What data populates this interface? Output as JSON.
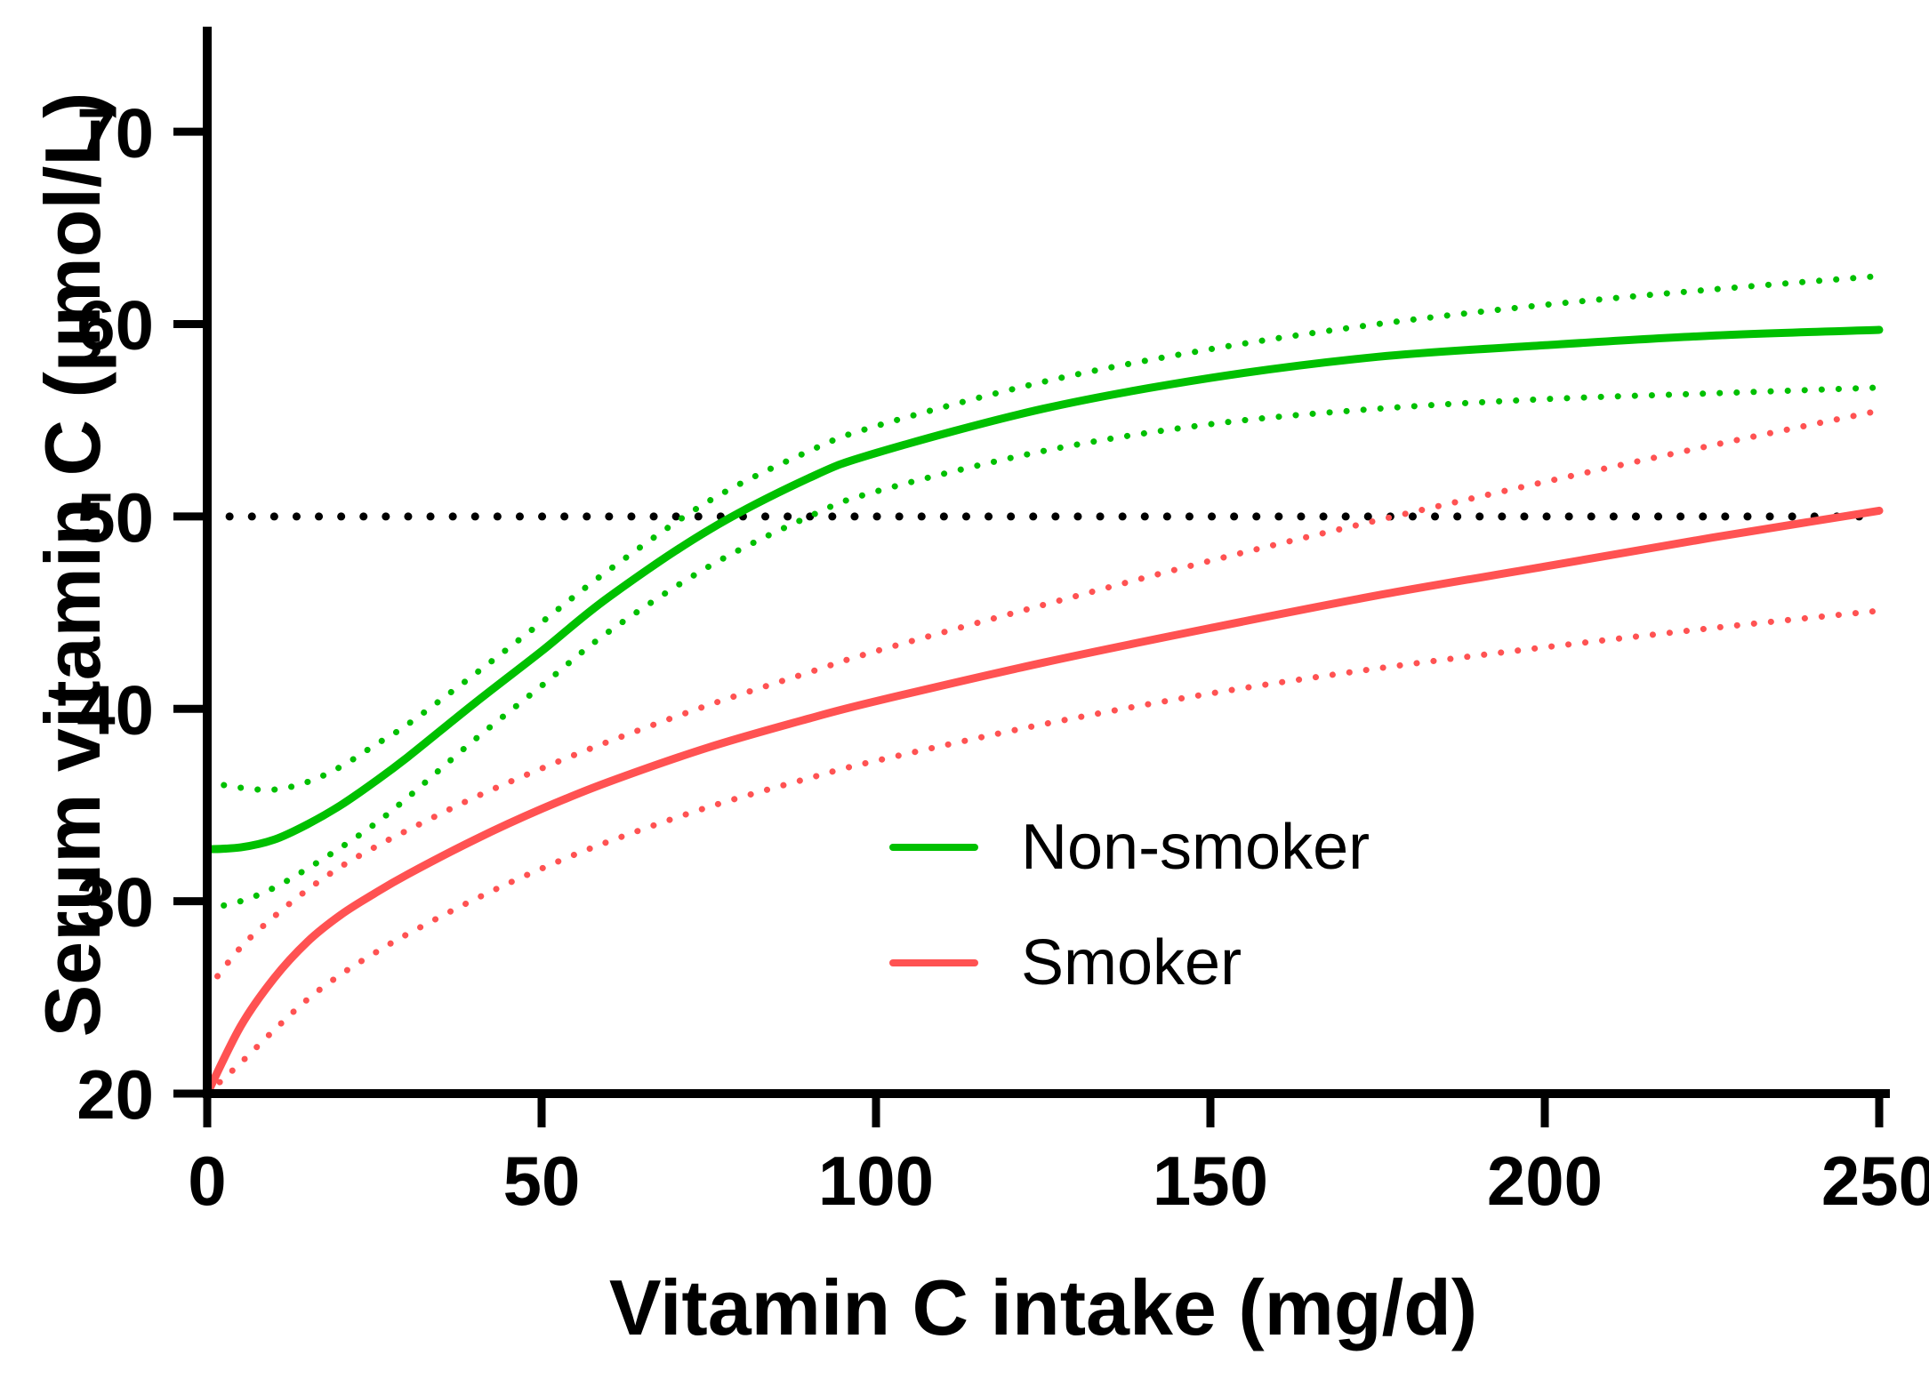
{
  "figure": {
    "xlabel": "Vitamin C intake (mg/d)",
    "ylabel": "Serum vitamin C (µmol/L)"
  },
  "legend": {
    "items": [
      {
        "label": "Non-smoker",
        "color": "#00c000"
      },
      {
        "label": "Smoker",
        "color": "#ff5252"
      }
    ]
  },
  "chart_data": {
    "type": "line",
    "title": "",
    "xlabel": "Vitamin C intake (mg/d)",
    "ylabel": "Serum vitamin C (µmol/L)",
    "xlim": [
      0,
      250
    ],
    "ylim": [
      20,
      75
    ],
    "xticks": [
      0,
      50,
      100,
      150,
      200,
      250
    ],
    "yticks": [
      20,
      30,
      40,
      50,
      60,
      70
    ],
    "grid": false,
    "legend_position": "inside lower right",
    "axis_color": "#000000",
    "reference_line": {
      "y": 50,
      "style": "dotted",
      "color": "#000000"
    },
    "x": [
      0,
      5,
      10,
      15,
      20,
      25,
      30,
      40,
      50,
      60,
      75,
      90,
      100,
      125,
      150,
      175,
      200,
      225,
      250
    ],
    "series": [
      {
        "name": "Non-smoker",
        "color": "#00c000",
        "style": "solid",
        "values": [
          32.7,
          32.8,
          33.2,
          34.0,
          35.0,
          36.2,
          37.5,
          40.3,
          43.0,
          45.8,
          49.3,
          52.0,
          53.3,
          55.6,
          57.2,
          58.3,
          58.9,
          59.4,
          59.7
        ]
      },
      {
        "name": "Non-smoker CI upper",
        "color": "#00c000",
        "style": "dotted",
        "values": [
          36.2,
          35.9,
          35.8,
          36.2,
          37.0,
          38.1,
          39.2,
          41.8,
          44.5,
          47.2,
          50.8,
          53.4,
          54.7,
          57.0,
          58.7,
          60.0,
          61.0,
          61.8,
          62.5
        ]
      },
      {
        "name": "Non-smoker CI lower",
        "color": "#00c000",
        "style": "dotted",
        "values": [
          29.6,
          30.0,
          30.7,
          31.7,
          32.8,
          34.0,
          35.4,
          38.4,
          41.2,
          44.0,
          47.4,
          50.0,
          51.3,
          53.4,
          54.8,
          55.6,
          56.1,
          56.4,
          56.7
        ]
      },
      {
        "name": "Smoker",
        "color": "#ff5252",
        "style": "solid",
        "values": [
          19.8,
          23.5,
          26.0,
          27.9,
          29.3,
          30.4,
          31.4,
          33.2,
          34.8,
          36.2,
          38.0,
          39.5,
          40.4,
          42.4,
          44.2,
          45.9,
          47.4,
          48.9,
          50.3
        ]
      },
      {
        "name": "Smoker CI upper",
        "color": "#ff5252",
        "style": "dotted",
        "values": [
          25.4,
          27.6,
          29.2,
          30.6,
          31.8,
          32.8,
          33.7,
          35.4,
          36.9,
          38.3,
          40.2,
          41.9,
          43.0,
          45.4,
          47.7,
          49.8,
          51.8,
          53.7,
          55.5
        ]
      },
      {
        "name": "Smoker CI lower",
        "color": "#ff5252",
        "style": "dotted",
        "values": [
          19.2,
          21.6,
          23.3,
          24.9,
          26.2,
          27.3,
          28.3,
          30.1,
          31.7,
          33.1,
          34.9,
          36.4,
          37.3,
          39.2,
          40.8,
          42.1,
          43.2,
          44.2,
          45.1
        ]
      }
    ]
  }
}
